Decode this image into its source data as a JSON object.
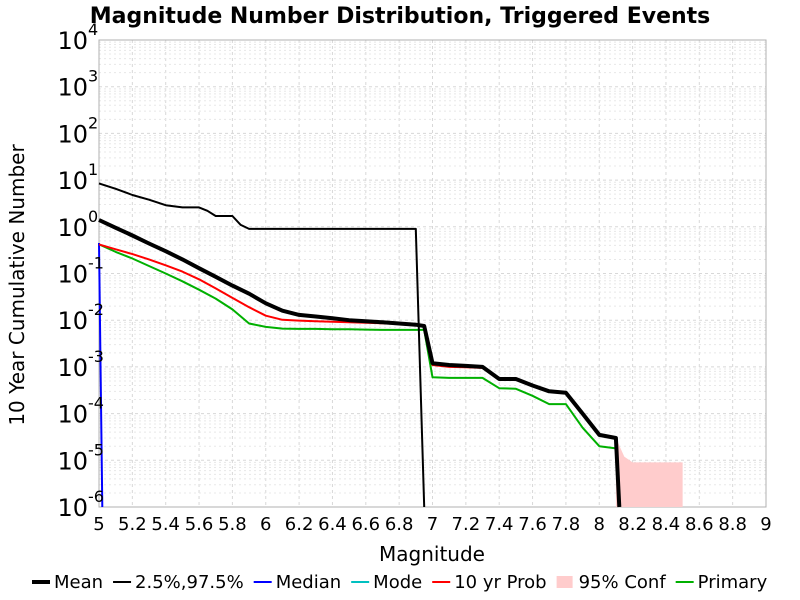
{
  "chart_data": {
    "type": "line",
    "title": "Magnitude Number Distribution, Triggered Events",
    "xlabel": "Magnitude",
    "ylabel": "10 Year Cumulative Number",
    "xlim": [
      5,
      9
    ],
    "ylim": [
      1e-06,
      10000
    ],
    "y_scale": "log",
    "grid": true,
    "x_tick_labels": [
      "5",
      "5.2",
      "5.4",
      "5.6",
      "5.8",
      "6",
      "6.2",
      "6.4",
      "6.6",
      "6.8",
      "7",
      "7.2",
      "7.4",
      "7.6",
      "7.8",
      "8",
      "8.2",
      "8.4",
      "8.6",
      "8.8",
      "9"
    ],
    "x_tick_values": [
      5,
      5.2,
      5.4,
      5.6,
      5.8,
      6,
      6.2,
      6.4,
      6.6,
      6.8,
      7,
      7.2,
      7.4,
      7.6,
      7.8,
      8,
      8.2,
      8.4,
      8.6,
      8.8,
      9
    ],
    "y_tick_base": "10",
    "y_tick_exponents": [
      "4",
      "3",
      "2",
      "1",
      "0",
      "-1",
      "-2",
      "-3",
      "-4",
      "-5",
      "-6"
    ],
    "legend_placement": "bottom",
    "series": [
      {
        "name": "Mean",
        "color": "#000000",
        "width": 4,
        "x": [
          5.0,
          5.1,
          5.2,
          5.3,
          5.4,
          5.5,
          5.6,
          5.7,
          5.8,
          5.9,
          6.0,
          6.1,
          6.2,
          6.3,
          6.4,
          6.5,
          6.6,
          6.7,
          6.8,
          6.9,
          6.95,
          7.0,
          7.1,
          7.2,
          7.3,
          7.4,
          7.5,
          7.6,
          7.7,
          7.8,
          7.9,
          8.0,
          8.1,
          8.12
        ],
        "y": [
          1.4,
          0.95,
          0.65,
          0.44,
          0.3,
          0.2,
          0.13,
          0.085,
          0.055,
          0.037,
          0.023,
          0.016,
          0.013,
          0.012,
          0.011,
          0.01,
          0.0095,
          0.009,
          0.0085,
          0.008,
          0.0075,
          0.0012,
          0.0011,
          0.00105,
          0.001,
          0.00055,
          0.00055,
          0.0004,
          0.0003,
          0.00028,
          0.0001,
          3.5e-05,
          3e-05,
          1e-06
        ]
      },
      {
        "name": "2.5%,97.5%",
        "color": "#000000",
        "width": 2,
        "x": [
          5.0,
          5.1,
          5.2,
          5.3,
          5.4,
          5.5,
          5.6,
          5.65,
          5.7,
          5.8,
          5.85,
          5.9,
          6.0,
          6.4,
          6.6,
          6.8,
          6.9,
          6.95
        ],
        "y": [
          8.5,
          6.5,
          4.8,
          3.8,
          2.9,
          2.6,
          2.6,
          2.2,
          1.7,
          1.7,
          1.1,
          0.9,
          0.9,
          0.9,
          0.9,
          0.9,
          0.9,
          1e-06
        ]
      },
      {
        "name": "Median",
        "color": "#0000ff",
        "width": 2,
        "x": [
          5.0,
          5.02
        ],
        "y": [
          0.45,
          1e-06
        ]
      },
      {
        "name": "Mode",
        "color": "#00c0c0",
        "width": 2,
        "x": [],
        "y": []
      },
      {
        "name": "10 yr Prob",
        "color": "#ff0000",
        "width": 2,
        "x": [
          5.0,
          5.1,
          5.2,
          5.3,
          5.4,
          5.5,
          5.6,
          5.7,
          5.8,
          5.9,
          6.0,
          6.1,
          6.2,
          6.3,
          6.4,
          6.5,
          6.6,
          6.7,
          6.8,
          6.9,
          6.95,
          7.0,
          7.1,
          7.2,
          7.3,
          7.4,
          7.5,
          7.6,
          7.7,
          7.8,
          7.9,
          8.0,
          8.1
        ],
        "y": [
          0.42,
          0.33,
          0.26,
          0.2,
          0.15,
          0.11,
          0.075,
          0.048,
          0.03,
          0.019,
          0.0125,
          0.0102,
          0.0098,
          0.0095,
          0.0093,
          0.009,
          0.0088,
          0.0086,
          0.0084,
          0.008,
          0.0078,
          0.0011,
          0.001,
          0.00098,
          0.00095,
          0.00055,
          0.00055,
          0.0004,
          0.0003,
          0.00028,
          0.0001,
          3.5e-05,
          3e-05
        ]
      },
      {
        "name": "Primary",
        "color": "#00b000",
        "width": 2,
        "x": [
          5.0,
          5.1,
          5.2,
          5.3,
          5.4,
          5.5,
          5.6,
          5.7,
          5.8,
          5.9,
          6.0,
          6.1,
          6.2,
          6.3,
          6.4,
          6.5,
          6.6,
          6.7,
          6.8,
          6.9,
          6.95,
          7.0,
          7.1,
          7.2,
          7.3,
          7.4,
          7.5,
          7.6,
          7.7,
          7.8,
          7.9,
          8.0,
          8.1
        ],
        "y": [
          0.42,
          0.29,
          0.21,
          0.145,
          0.1,
          0.068,
          0.045,
          0.029,
          0.017,
          0.0085,
          0.0072,
          0.0066,
          0.0065,
          0.0065,
          0.0064,
          0.0064,
          0.0063,
          0.0062,
          0.0062,
          0.0062,
          0.0062,
          0.0006,
          0.00058,
          0.00058,
          0.00058,
          0.00035,
          0.00034,
          0.00024,
          0.00016,
          0.00016,
          5e-05,
          2e-05,
          1.8e-05
        ]
      }
    ],
    "conf_band": {
      "name": "95% Conf",
      "color": "#ffcccc",
      "x": [
        8.1,
        8.15,
        8.2,
        8.5
      ],
      "y_low": [
        1e-06,
        1e-06,
        1e-06,
        1e-06
      ],
      "y_high": [
        3e-05,
        1.2e-05,
        9e-06,
        9e-06
      ]
    },
    "legend": [
      "Mean",
      "2.5%,97.5%",
      "Median",
      "Mode",
      "10 yr Prob",
      "95% Conf",
      "Primary"
    ]
  }
}
